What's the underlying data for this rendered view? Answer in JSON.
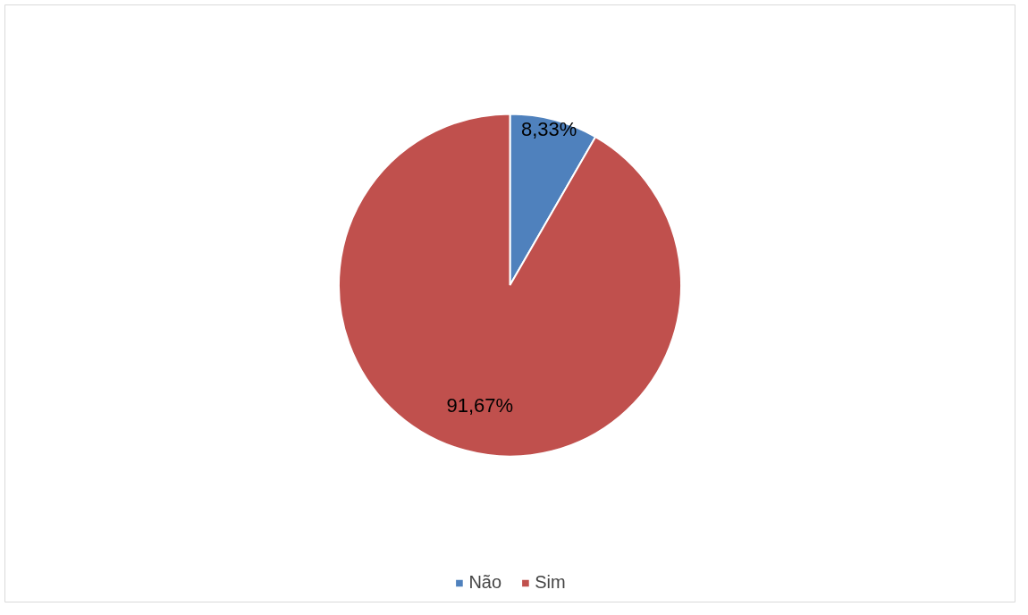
{
  "chart_data": {
    "type": "pie",
    "categories": [
      "Não",
      "Sim"
    ],
    "values": [
      8.33,
      91.67
    ],
    "colors": [
      "#4f81bd",
      "#c0504d"
    ],
    "value_labels": [
      "8,33%",
      "91,67%"
    ],
    "legend": "bottom"
  }
}
